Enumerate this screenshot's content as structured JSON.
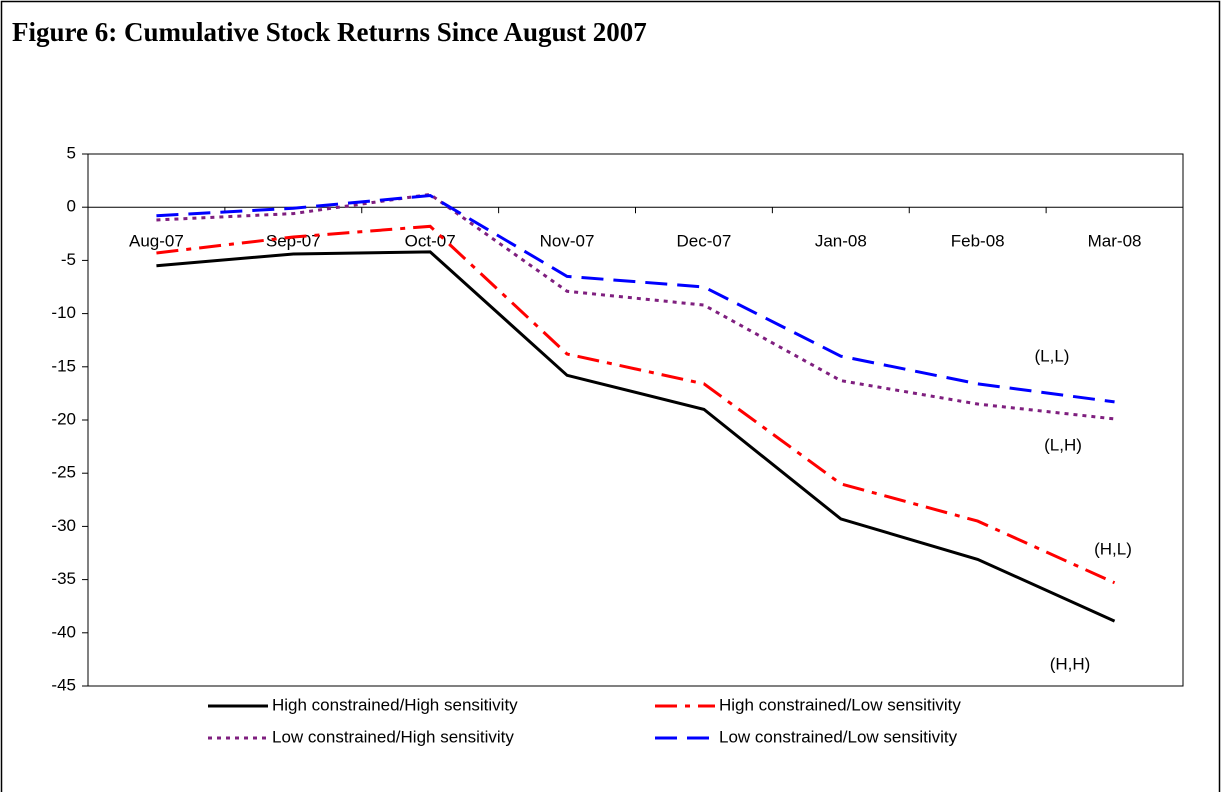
{
  "chart_data": {
    "type": "line",
    "title": "Figure 6: Cumulative Stock Returns Since August 2007",
    "categories": [
      "Aug-07",
      "Sep-07",
      "Oct-07",
      "Nov-07",
      "Dec-07",
      "Jan-08",
      "Feb-08",
      "Mar-08"
    ],
    "series": [
      {
        "name": "High constrained/High sensitivity",
        "color": "#000000",
        "dash": "solid",
        "values": [
          -5.5,
          -4.4,
          -4.2,
          -15.8,
          -19.0,
          -29.3,
          -33.1,
          -38.9
        ]
      },
      {
        "name": "High constrained/Low sensitivity",
        "color": "#ff0000",
        "dash": "dashdot",
        "values": [
          -4.3,
          -2.8,
          -1.8,
          -13.8,
          -16.6,
          -26.0,
          -29.5,
          -35.3
        ]
      },
      {
        "name": "Low constrained/High sensitivity",
        "color": "#7f1f7f",
        "dash": "dot",
        "values": [
          -1.2,
          -0.6,
          1.2,
          -7.9,
          -9.2,
          -16.3,
          -18.5,
          -19.9
        ]
      },
      {
        "name": "Low constrained/Low sensitivity",
        "color": "#0000ff",
        "dash": "dash",
        "values": [
          -0.8,
          -0.1,
          1.1,
          -6.5,
          -7.5,
          -14.0,
          -16.6,
          -18.3
        ]
      }
    ],
    "annotations": [
      "(L,L)",
      "(L,H)",
      "(H,L)",
      "(H,H)"
    ],
    "ylim": [
      -45,
      5
    ],
    "yticks": [
      5,
      0,
      -5,
      -10,
      -15,
      -20,
      -25,
      -30,
      -35,
      -40,
      -45
    ]
  }
}
